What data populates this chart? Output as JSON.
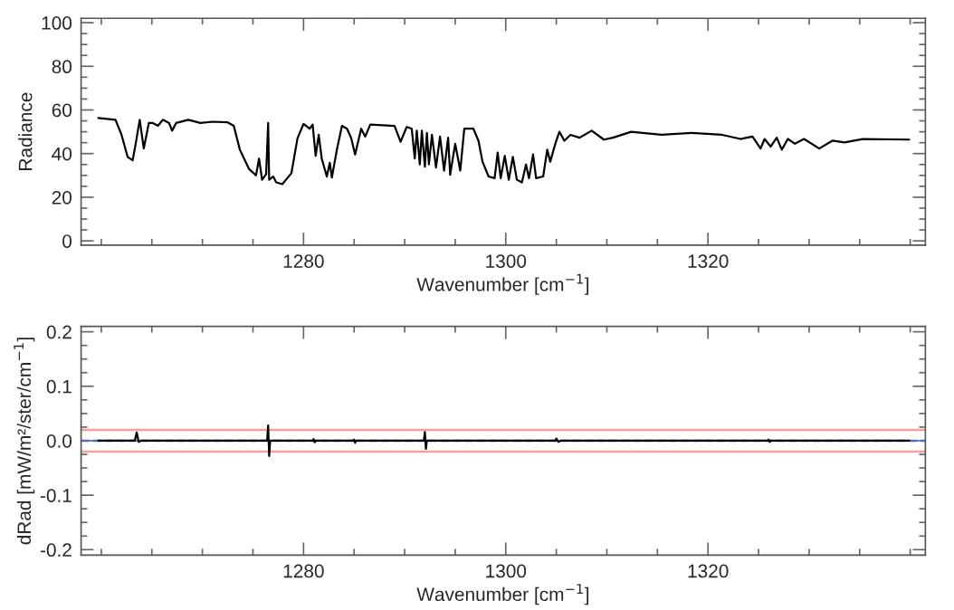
{
  "chart_data": [
    {
      "type": "line",
      "xlabel": "Wavenumber [cm$^{−1}$]",
      "ylabel": "Radiance",
      "xlim": [
        1258,
        1341.5
      ],
      "ylim": [
        -2,
        102
      ],
      "xticks": [
        {
          "value": 1260,
          "label": null
        },
        {
          "value": 1265,
          "label": null
        },
        {
          "value": 1270,
          "label": null
        },
        {
          "value": 1275,
          "label": null
        },
        1280,
        {
          "value": 1285,
          "label": null
        },
        {
          "value": 1290,
          "label": null
        },
        {
          "value": 1295,
          "label": null
        },
        1300,
        {
          "value": 1305,
          "label": null
        },
        {
          "value": 1310,
          "label": null
        },
        {
          "value": 1315,
          "label": null
        },
        1320,
        {
          "value": 1325,
          "label": null
        },
        {
          "value": 1330,
          "label": null
        },
        {
          "value": 1335,
          "label": null
        },
        {
          "value": 1340,
          "label": null
        }
      ],
      "yticks": [
        0,
        {
          "value": 5,
          "label": null
        },
        {
          "value": 10,
          "label": null
        },
        {
          "value": 15,
          "label": null
        },
        20,
        {
          "value": 25,
          "label": null
        },
        {
          "value": 30,
          "label": null
        },
        {
          "value": 35,
          "label": null
        },
        40,
        {
          "value": 45,
          "label": null
        },
        {
          "value": 50,
          "label": null
        },
        {
          "value": 55,
          "label": null
        },
        60,
        {
          "value": 65,
          "label": null
        },
        {
          "value": 70,
          "label": null
        },
        {
          "value": 75,
          "label": null
        },
        80,
        {
          "value": 85,
          "label": null
        },
        {
          "value": 90,
          "label": null
        },
        {
          "value": 95,
          "label": null
        },
        100
      ],
      "grid": false,
      "legend": false,
      "series": [
        {
          "color": "#000000",
          "x": [
            1259.7,
            1261.4,
            1262.0,
            1262.6,
            1263.1,
            1263.4,
            1263.8,
            1264.2,
            1264.7,
            1265.1,
            1265.6,
            1266.1,
            1266.7,
            1267.0,
            1267.4,
            1268.6,
            1269.8,
            1271.0,
            1272.5,
            1273.1,
            1273.7,
            1274.6,
            1275.3,
            1275.6,
            1275.9,
            1276.3,
            1276.5,
            1276.6,
            1277.0,
            1277.3,
            1277.9,
            1278.8,
            1279.4,
            1280.0,
            1280.6,
            1280.9,
            1281.2,
            1281.5,
            1281.8,
            1282.3,
            1282.6,
            1282.8,
            1283.3,
            1283.8,
            1284.3,
            1284.7,
            1285.1,
            1285.7,
            1286.1,
            1286.6,
            1289.0,
            1289.6,
            1290.2,
            1290.7,
            1291.0,
            1291.2,
            1291.5,
            1291.7,
            1292.0,
            1292.2,
            1292.4,
            1292.7,
            1293.1,
            1293.5,
            1293.9,
            1294.3,
            1294.5,
            1295.0,
            1295.5,
            1295.9,
            1296.8,
            1297.3,
            1297.7,
            1298.3,
            1298.9,
            1299.2,
            1299.5,
            1299.9,
            1300.3,
            1300.7,
            1301.1,
            1301.6,
            1302.0,
            1302.3,
            1302.7,
            1303.0,
            1303.7,
            1304.1,
            1304.4,
            1304.9,
            1305.3,
            1305.8,
            1306.4,
            1307.3,
            1308.5,
            1309.7,
            1310.6,
            1312.4,
            1315.4,
            1318.4,
            1321.4,
            1323.2,
            1324.4,
            1325.2,
            1325.6,
            1326.2,
            1326.8,
            1327.3,
            1327.9,
            1328.6,
            1329.5,
            1331.0,
            1332.3,
            1333.5,
            1335.3,
            1339.9
          ],
          "values": [
            56.3,
            55.5,
            48.6,
            38.5,
            36.9,
            44.5,
            55.5,
            42.3,
            54,
            54,
            52.7,
            55.5,
            54,
            50.5,
            54,
            55.5,
            54,
            54.6,
            54.3,
            52.7,
            41.8,
            33,
            30,
            37.7,
            28,
            30.6,
            54,
            28,
            29.5,
            26.8,
            26,
            31,
            47,
            53.6,
            51.4,
            53.3,
            39,
            48.6,
            37.7,
            29.5,
            35.8,
            29,
            41.8,
            52.7,
            51.4,
            47.3,
            39.6,
            51.4,
            47.8,
            53.3,
            52.7,
            45.4,
            52.2,
            51.4,
            37.7,
            50.5,
            35,
            50.5,
            34,
            49.5,
            35,
            48.6,
            33.6,
            47.8,
            32.2,
            47.3,
            30.3,
            44.5,
            32.2,
            51.4,
            51.4,
            45.9,
            36.3,
            29.5,
            28.7,
            40.4,
            28.7,
            39,
            28,
            38.5,
            28,
            26.8,
            35,
            28.7,
            39.6,
            28.7,
            29.5,
            41.8,
            36.3,
            44.5,
            50,
            45.9,
            48.6,
            47.3,
            50.5,
            46.4,
            47.3,
            50,
            48.6,
            49.5,
            48.6,
            46.7,
            47.8,
            42.3,
            46.7,
            43.2,
            47.3,
            41.8,
            46.7,
            44.5,
            46.7,
            42.3,
            45.9,
            45.1,
            46.7,
            46.4
          ]
        }
      ]
    },
    {
      "type": "line",
      "xlabel": "Wavenumber [cm$^{−1}$]",
      "ylabel": "dRad [mW/m²/ster/cm$^{−1}$]",
      "xlim": [
        1258,
        1341.5
      ],
      "ylim": [
        -0.21,
        0.21
      ],
      "xticks": [
        {
          "value": 1260,
          "label": null
        },
        {
          "value": 1265,
          "label": null
        },
        {
          "value": 1270,
          "label": null
        },
        {
          "value": 1275,
          "label": null
        },
        1280,
        {
          "value": 1285,
          "label": null
        },
        {
          "value": 1290,
          "label": null
        },
        {
          "value": 1295,
          "label": null
        },
        1300,
        {
          "value": 1305,
          "label": null
        },
        {
          "value": 1310,
          "label": null
        },
        {
          "value": 1315,
          "label": null
        },
        1320,
        {
          "value": 1325,
          "label": null
        },
        {
          "value": 1330,
          "label": null
        },
        {
          "value": 1335,
          "label": null
        },
        {
          "value": 1340,
          "label": null
        }
      ],
      "yticks": [
        {
          "value": -0.2,
          "label": "-0.2"
        },
        {
          "value": -0.175,
          "label": null
        },
        {
          "value": -0.15,
          "label": null
        },
        {
          "value": -0.125,
          "label": null
        },
        {
          "value": -0.1,
          "label": "-0.1"
        },
        {
          "value": -0.075,
          "label": null
        },
        {
          "value": -0.05,
          "label": null
        },
        {
          "value": -0.025,
          "label": null
        },
        {
          "value": 0,
          "label": "0.0"
        },
        {
          "value": 0.025,
          "label": null
        },
        {
          "value": 0.05,
          "label": null
        },
        {
          "value": 0.075,
          "label": null
        },
        {
          "value": 0.1,
          "label": "0.1"
        },
        {
          "value": 0.125,
          "label": null
        },
        {
          "value": 0.15,
          "label": null
        },
        {
          "value": 0.175,
          "label": null
        },
        {
          "value": 0.2,
          "label": "0.2"
        }
      ],
      "grid": false,
      "legend": false,
      "ref_lines": [
        {
          "axis": "y",
          "value": 0.02,
          "label": null,
          "color": "#f4a09a",
          "line_style": "solid"
        },
        {
          "axis": "y",
          "value": -0.02,
          "label": null,
          "color": "#f4a09a",
          "line_style": "solid"
        },
        {
          "axis": "y",
          "value": 0,
          "label": null,
          "color": "#4a6fc4",
          "line_style": "dashed"
        }
      ],
      "series": [
        {
          "color": "#000000",
          "x": [
            1259.7,
            1263.3,
            1263.5,
            1263.7,
            1263.9,
            1276.4,
            1276.5,
            1276.6,
            1276.7,
            1280.9,
            1281.0,
            1281.1,
            1281.2,
            1284.9,
            1285.0,
            1285.1,
            1285.2,
            1291.9,
            1292.0,
            1292.1,
            1292.2,
            1304.9,
            1305.0,
            1305.2,
            1305.4,
            1325.9,
            1326.0,
            1326.1,
            1326.2,
            1339.9
          ],
          "values": [
            0,
            0,
            0.015,
            -0.002,
            0,
            0,
            0.028,
            -0.028,
            0,
            0,
            0.003,
            -0.003,
            0,
            0,
            0.002,
            -0.004,
            0,
            0,
            0.016,
            -0.015,
            0,
            0,
            0.004,
            -0.002,
            0,
            0,
            0.002,
            -0.002,
            0,
            0
          ]
        }
      ]
    }
  ]
}
